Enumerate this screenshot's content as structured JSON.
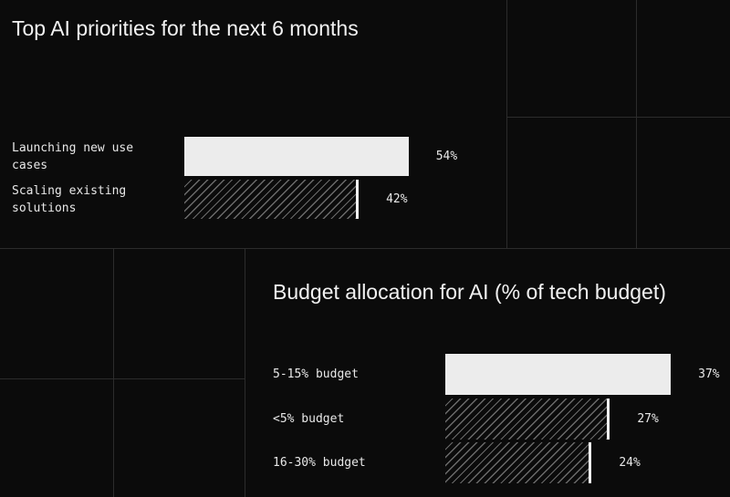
{
  "chart_data": [
    {
      "type": "bar",
      "orientation": "horizontal",
      "title": "Top AI priorities for the next 6 months",
      "categories": [
        "Launching new use cases",
        "Scaling existing solutions"
      ],
      "values": [
        54,
        42
      ],
      "value_labels": [
        "54%",
        "42%"
      ],
      "styles": [
        "solid",
        "hatched"
      ],
      "xlim": [
        0,
        100
      ]
    },
    {
      "type": "bar",
      "orientation": "horizontal",
      "title": "Budget allocation for AI (% of tech budget)",
      "categories": [
        "5-15% budget",
        "<5% budget",
        "16-30% budget"
      ],
      "values": [
        37,
        27,
        24
      ],
      "value_labels": [
        "37%",
        "27%",
        "24%"
      ],
      "styles": [
        "solid",
        "hatched",
        "hatched"
      ],
      "xlim": [
        0,
        100
      ]
    }
  ],
  "colors": {
    "background": "#0b0b0b",
    "bar_fill": "#ececec",
    "hatch": "#6a6a6a",
    "grid": "#2c2c2c"
  }
}
